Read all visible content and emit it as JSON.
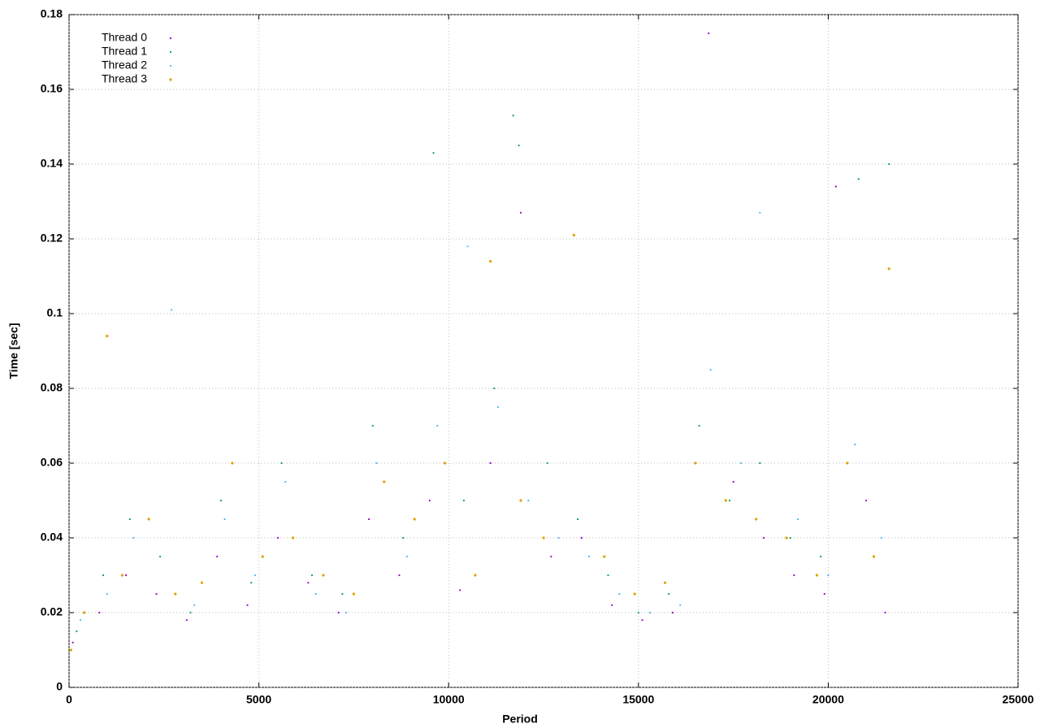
{
  "chart_data": {
    "type": "scatter",
    "xlabel": "Period",
    "ylabel": "Time [sec]",
    "xlim": [
      0,
      25000
    ],
    "xticks": [
      0,
      5000,
      10000,
      15000,
      20000,
      25000
    ],
    "ylim": [
      0,
      0.18
    ],
    "yticks": [
      0,
      0.02,
      0.04,
      0.06,
      0.08,
      0.1,
      0.12,
      0.14,
      0.16,
      0.18
    ],
    "grid": true,
    "legend": "top-left",
    "series": [
      {
        "name": "Thread 0",
        "color": "#9400d3",
        "x": [
          100,
          800,
          1500,
          2300,
          3100,
          3900,
          4700,
          5500,
          6300,
          7100,
          7900,
          8700,
          9500,
          10300,
          11100,
          11900,
          12700,
          13500,
          14300,
          15100,
          15900,
          16850,
          17500,
          18300,
          19100,
          19900,
          20200,
          21000,
          21500
        ],
        "values": [
          0.012,
          0.02,
          0.03,
          0.025,
          0.018,
          0.035,
          0.022,
          0.04,
          0.028,
          0.02,
          0.045,
          0.03,
          0.05,
          0.026,
          0.06,
          0.127,
          0.035,
          0.04,
          0.022,
          0.018,
          0.02,
          0.175,
          0.055,
          0.04,
          0.03,
          0.025,
          0.134,
          0.05,
          0.02
        ]
      },
      {
        "name": "Thread 1",
        "color": "#009e73",
        "x": [
          200,
          900,
          1600,
          2400,
          3200,
          4000,
          4800,
          5600,
          6400,
          7200,
          8000,
          8800,
          9600,
          10400,
          11200,
          11700,
          11850,
          12600,
          13400,
          14200,
          15000,
          15800,
          16600,
          17400,
          18200,
          19000,
          19800,
          20800,
          21600
        ],
        "values": [
          0.015,
          0.03,
          0.045,
          0.035,
          0.02,
          0.05,
          0.028,
          0.06,
          0.03,
          0.025,
          0.07,
          0.04,
          0.143,
          0.05,
          0.08,
          0.153,
          0.145,
          0.06,
          0.045,
          0.03,
          0.02,
          0.025,
          0.07,
          0.05,
          0.06,
          0.04,
          0.035,
          0.136,
          0.14
        ]
      },
      {
        "name": "Thread 2",
        "color": "#56b4e9",
        "x": [
          300,
          1000,
          1700,
          2700,
          3300,
          4100,
          4900,
          5700,
          6500,
          7300,
          8100,
          8900,
          9700,
          10500,
          11300,
          12100,
          12900,
          13700,
          14500,
          15300,
          16100,
          16900,
          17700,
          18200,
          19200,
          20000,
          20700,
          21400
        ],
        "values": [
          0.018,
          0.025,
          0.04,
          0.101,
          0.022,
          0.045,
          0.03,
          0.055,
          0.025,
          0.02,
          0.06,
          0.035,
          0.07,
          0.118,
          0.075,
          0.05,
          0.04,
          0.035,
          0.025,
          0.02,
          0.022,
          0.085,
          0.06,
          0.127,
          0.045,
          0.03,
          0.065,
          0.04
        ]
      },
      {
        "name": "Thread 3",
        "color": "#e69f00",
        "x": [
          50,
          400,
          1000,
          1400,
          2100,
          2800,
          3500,
          4300,
          5100,
          5900,
          6700,
          7500,
          8300,
          9100,
          9900,
          10700,
          11100,
          11900,
          12500,
          13300,
          14100,
          14900,
          15700,
          16500,
          17300,
          18100,
          18900,
          19700,
          20500,
          21200,
          21600
        ],
        "values": [
          0.01,
          0.02,
          0.094,
          0.03,
          0.045,
          0.025,
          0.028,
          0.06,
          0.035,
          0.04,
          0.03,
          0.025,
          0.055,
          0.045,
          0.06,
          0.03,
          0.114,
          0.05,
          0.04,
          0.121,
          0.035,
          0.025,
          0.028,
          0.06,
          0.05,
          0.045,
          0.04,
          0.03,
          0.06,
          0.035,
          0.112
        ]
      }
    ]
  }
}
